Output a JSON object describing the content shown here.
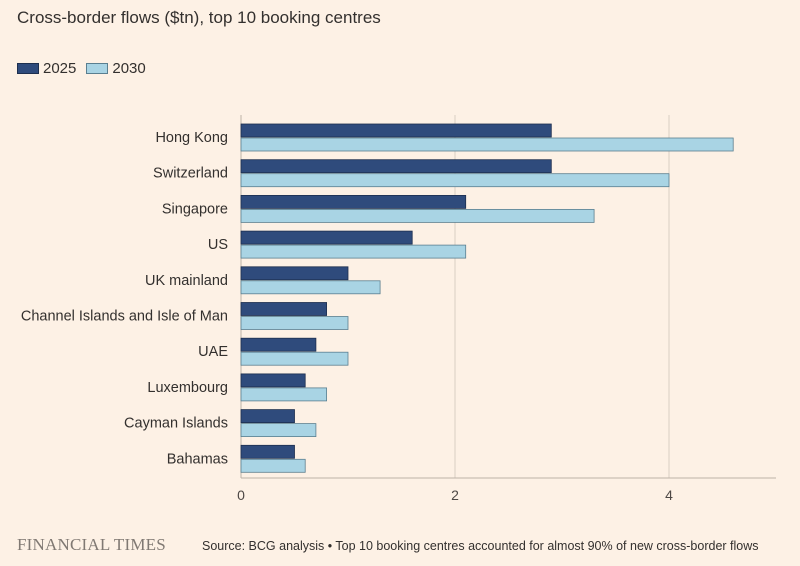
{
  "chart_data": {
    "type": "bar",
    "orientation": "horizontal",
    "title": "Cross-border flows ($tn), top 10 booking centres",
    "categories": [
      "Hong Kong",
      "Switzerland",
      "Singapore",
      "US",
      "UK mainland",
      "Channel Islands and Isle of Man",
      "UAE",
      "Luxembourg",
      "Cayman Islands",
      "Bahamas"
    ],
    "series": [
      {
        "name": "2025",
        "color": "#2f4b7c",
        "values": [
          2.9,
          2.9,
          2.1,
          1.6,
          1.0,
          0.8,
          0.7,
          0.6,
          0.5,
          0.5
        ]
      },
      {
        "name": "2030",
        "color": "#a9d4e4",
        "values": [
          4.6,
          4.0,
          3.3,
          2.1,
          1.3,
          1.0,
          1.0,
          0.8,
          0.7,
          0.6
        ]
      }
    ],
    "xlim": [
      0,
      5
    ],
    "xticks": [
      0,
      2,
      4
    ],
    "grid": true,
    "legend_position": "top-left"
  },
  "footer": {
    "logo": "FINANCIAL TIMES",
    "source": "Source: BCG analysis • Top 10 booking centres accounted for almost 90% of new cross-border flows"
  }
}
